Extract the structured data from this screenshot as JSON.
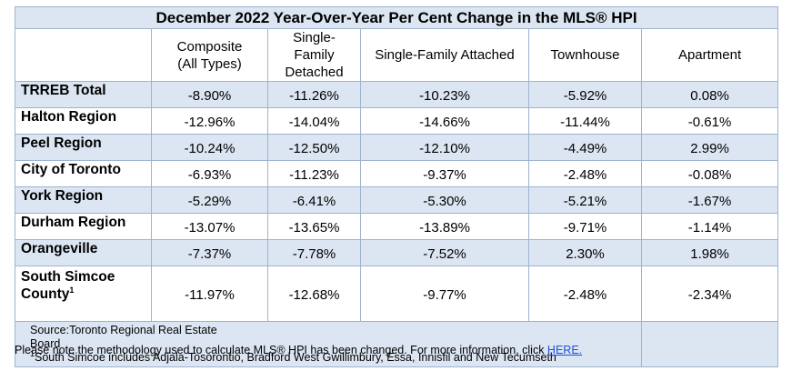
{
  "title": "December 2022 Year-Over-Year Per Cent Change in the MLS® HPI",
  "columns": [
    "Composite\n(All Types)",
    "Single-\nFamily\nDetached",
    "Single-Family Attached",
    "Townhouse",
    "Apartment"
  ],
  "rows": [
    {
      "region": "TRREB Total",
      "values": [
        "-8.90%",
        "-11.26%",
        "-10.23%",
        "-5.92%",
        "0.08%"
      ]
    },
    {
      "region": "Halton Region",
      "values": [
        "-12.96%",
        "-14.04%",
        "-14.66%",
        "-11.44%",
        "-0.61%"
      ]
    },
    {
      "region": "Peel Region",
      "values": [
        "-10.24%",
        "-12.50%",
        "-12.10%",
        "-4.49%",
        "2.99%"
      ]
    },
    {
      "region": "City of Toronto",
      "values": [
        "-6.93%",
        "-11.23%",
        "-9.37%",
        "-2.48%",
        "-0.08%"
      ]
    },
    {
      "region": "York Region",
      "values": [
        "-5.29%",
        "-6.41%",
        "-5.30%",
        "-5.21%",
        "-1.67%"
      ]
    },
    {
      "region": "Durham Region",
      "values": [
        "-13.07%",
        "-13.65%",
        "-13.89%",
        "-9.71%",
        "-1.14%"
      ]
    },
    {
      "region": "Orangeville",
      "values": [
        "-7.37%",
        "-7.78%",
        "-7.52%",
        "2.30%",
        "1.98%"
      ]
    },
    {
      "region": "South Simcoe\nCounty",
      "region_sup": "1",
      "values": [
        "-11.97%",
        "-12.68%",
        "-9.77%",
        "-2.48%",
        "-2.34%"
      ]
    }
  ],
  "footer": {
    "source_line1": "Source:Toronto Regional Real Estate",
    "source_line2": "Board",
    "footnote_mark": "1",
    "footnote_text": "South Simcoe includes Adjala-Tosorontio, Bradford West Gwillimbury, Essa, Innisfil and New Tecumseth"
  },
  "note": {
    "text": "Please note the methodology used to calculate MLS® HPI has been changed. For more information, click ",
    "link": "HERE."
  },
  "colors": {
    "band": "#dce6f2",
    "border": "#9fb3cf",
    "link": "#1f4ed8"
  }
}
